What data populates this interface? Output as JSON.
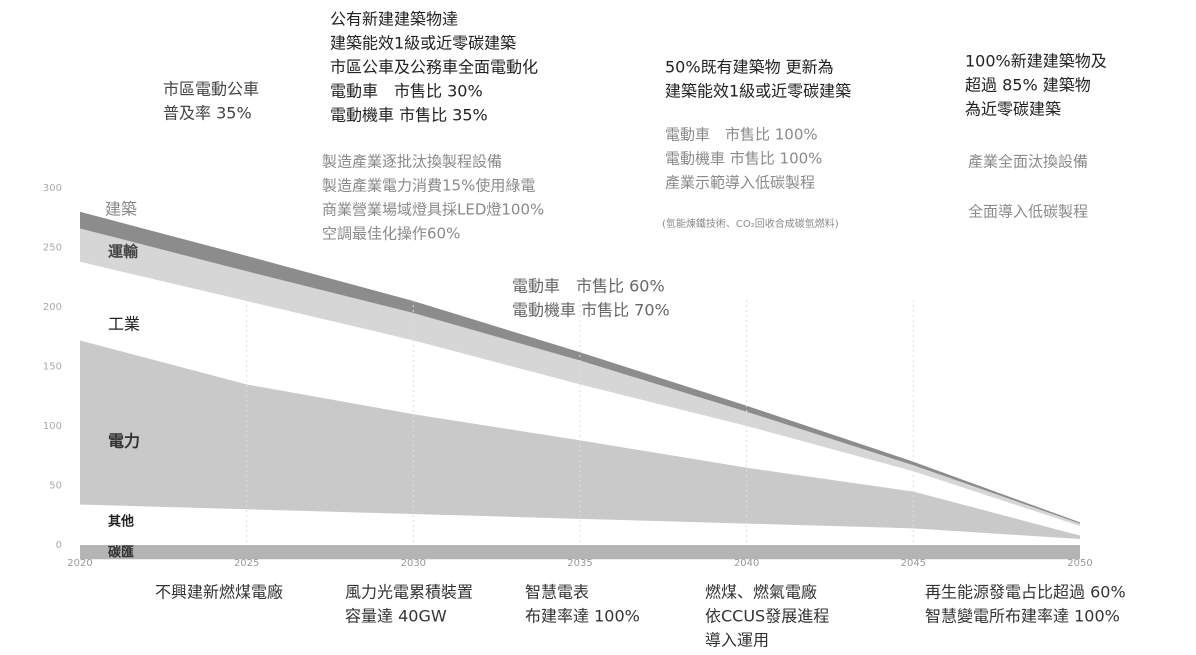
{
  "chart_data": {
    "type": "stacked_area",
    "x": [
      2020,
      2025,
      2030,
      2035,
      2040,
      2045,
      2050
    ],
    "xlim": [
      2020,
      2050
    ],
    "xticks": [
      2020,
      2025,
      2030,
      2035,
      2040,
      2045,
      2050
    ],
    "ylim": [
      0,
      300
    ],
    "yticks": [
      0,
      50,
      100,
      150,
      200,
      250,
      300
    ],
    "grid": true,
    "series": [
      {
        "name": "碳匯",
        "color": "#b4b4b4",
        "values": [
          -12,
          -12,
          -12,
          -12,
          -12,
          -12,
          -12
        ]
      },
      {
        "name": "其他",
        "color": "#ffffff",
        "values": [
          34,
          30,
          26,
          22,
          18,
          14,
          5
        ]
      },
      {
        "name": "電力",
        "color": "#c9c9c9",
        "values": [
          138,
          105,
          84,
          66,
          47,
          31,
          3
        ]
      },
      {
        "name": "工業",
        "color": "#ffffff",
        "values": [
          66,
          70,
          62,
          47,
          35,
          17,
          8
        ]
      },
      {
        "name": "運輸",
        "color": "#d6d6d6",
        "values": [
          28,
          25,
          23,
          20,
          12,
          5,
          2
        ]
      },
      {
        "name": "建築",
        "color": "#8c8c8c",
        "values": [
          14,
          13,
          10,
          7,
          5,
          3,
          1
        ]
      }
    ],
    "annotations": [
      {
        "color": "#444444",
        "lines": [
          "市區電動公車",
          "普及率 35%"
        ]
      },
      {
        "color": "#222222",
        "lines": [
          "公有新建建築物達",
          "建築能效1級或近零碳建築",
          "市區公車及公務車全面電動化",
          "電動車　市售比 30%",
          "電動機車 市售比 35%"
        ]
      },
      {
        "color": "#8a8a8a",
        "lines": [
          "製造產業逐批汰換製程設備",
          "製造產業電力消費15%使用綠電",
          "商業營業場域燈具採LED燈100%",
          "空調最佳化操作60%"
        ]
      },
      {
        "color": "#666666",
        "lines": [
          "電動車　市售比 60%",
          "電動機車 市售比 70%"
        ]
      },
      {
        "color": "#222222",
        "lines": [
          "50%既有建築物 更新為",
          "建築能效1級或近零碳建築"
        ]
      },
      {
        "color": "#8a8a8a",
        "lines": [
          "電動車　市售比 100%",
          "電動機車 市售比 100%",
          "產業示範導入低碳製程"
        ]
      },
      {
        "color": "#8a8a8a",
        "lines": [
          "(氫能煉鐵技術、CO₂回收合成碳氫燃料)"
        ]
      },
      {
        "color": "#222222",
        "lines": [
          "100%新建建築物及",
          "超過 85% 建築物",
          "為近零碳建築"
        ]
      },
      {
        "color": "#8a8a8a",
        "lines": [
          "產業全面汰換設備"
        ]
      },
      {
        "color": "#8a8a8a",
        "lines": [
          "全面導入低碳製程"
        ]
      },
      {
        "color": "#333333",
        "lines": [
          "不興建新燃煤電廠"
        ]
      },
      {
        "color": "#333333",
        "lines": [
          "風力光電累積裝置",
          "容量達 40GW"
        ]
      },
      {
        "color": "#333333",
        "lines": [
          "智慧電表",
          "布建率達 100%"
        ]
      },
      {
        "color": "#333333",
        "lines": [
          "燃煤、燃氣電廠",
          "依CCUS發展進程",
          "導入運用"
        ]
      },
      {
        "color": "#333333",
        "lines": [
          "再生能源發電占比超過 60%",
          "智慧變電所布建率達 100%"
        ]
      }
    ]
  }
}
